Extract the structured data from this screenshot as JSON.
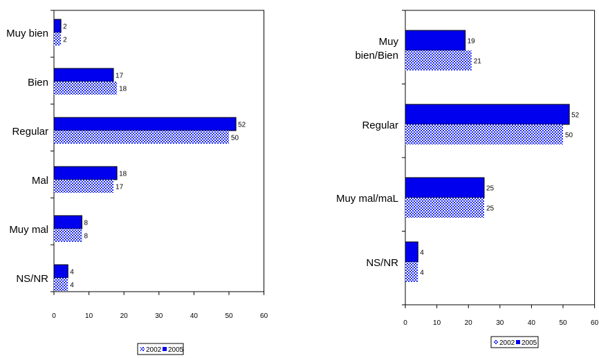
{
  "colors": {
    "solid": "#0000ee",
    "check_a": "#1f2bf0",
    "check_b": "#ffffff"
  },
  "chart_data": [
    {
      "type": "bar",
      "orientation": "horizontal",
      "categories": [
        "Muy bien",
        "Bien",
        "Regular",
        "Mal",
        "Muy mal",
        "NS/NR"
      ],
      "series": [
        {
          "name": "2002",
          "values": [
            2,
            18,
            50,
            17,
            8,
            4
          ]
        },
        {
          "name": "2005",
          "values": [
            2,
            17,
            52,
            18,
            8,
            4
          ]
        }
      ],
      "xlim": [
        0,
        60
      ],
      "xticks": [
        "0",
        "10",
        "20",
        "30",
        "40",
        "50",
        "60"
      ],
      "legend": "bottom",
      "legend_labels": [
        "2002",
        "2005"
      ],
      "grid": false
    },
    {
      "type": "bar",
      "orientation": "horizontal",
      "categories": [
        "Muy bien/Bien",
        "Regular",
        "Muy mal/maL",
        "NS/NR"
      ],
      "series": [
        {
          "name": "2002",
          "values": [
            21,
            50,
            25,
            4
          ]
        },
        {
          "name": "2005",
          "values": [
            19,
            52,
            25,
            4
          ]
        }
      ],
      "xlim": [
        0,
        60
      ],
      "xticks": [
        "0",
        "10",
        "20",
        "30",
        "40",
        "50",
        "60"
      ],
      "legend": "bottom",
      "legend_labels": [
        "2002",
        "2005"
      ],
      "grid": false
    }
  ]
}
